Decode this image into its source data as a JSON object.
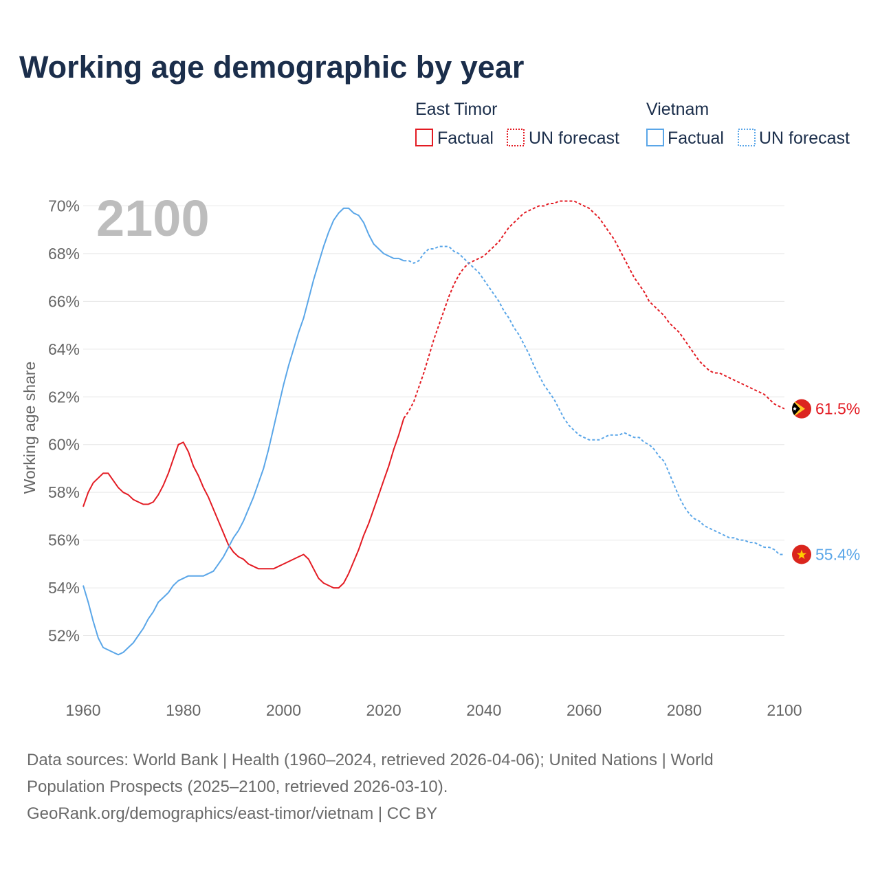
{
  "title": "Working age demographic by year",
  "year_display": "2100",
  "legend": {
    "groups": [
      {
        "country": "East Timor",
        "color": "#e31b23",
        "factual_label": "Factual",
        "forecast_label": "UN forecast"
      },
      {
        "country": "Vietnam",
        "color": "#5aa6e8",
        "factual_label": "Factual",
        "forecast_label": "UN forecast"
      }
    ]
  },
  "chart_data": {
    "type": "line",
    "title": "Working age demographic by year",
    "xlabel": "",
    "ylabel": "Working age share",
    "xlim": [
      1960,
      2100
    ],
    "ylim": [
      50,
      72
    ],
    "x_ticks": [
      "1960",
      "1980",
      "2000",
      "2020",
      "2040",
      "2060",
      "2080",
      "2100"
    ],
    "y_ticks": [
      "52%",
      "54%",
      "56%",
      "58%",
      "60%",
      "62%",
      "64%",
      "66%",
      "68%",
      "70%"
    ],
    "grid": true,
    "series": [
      {
        "name": "East Timor",
        "color": "#e31b23",
        "end_label": "61.5%",
        "factual": [
          [
            1960,
            57.4
          ],
          [
            1961,
            58.0
          ],
          [
            1962,
            58.4
          ],
          [
            1963,
            58.6
          ],
          [
            1964,
            58.8
          ],
          [
            1965,
            58.8
          ],
          [
            1966,
            58.5
          ],
          [
            1967,
            58.2
          ],
          [
            1968,
            58.0
          ],
          [
            1969,
            57.9
          ],
          [
            1970,
            57.7
          ],
          [
            1971,
            57.6
          ],
          [
            1972,
            57.5
          ],
          [
            1973,
            57.5
          ],
          [
            1974,
            57.6
          ],
          [
            1975,
            57.9
          ],
          [
            1976,
            58.3
          ],
          [
            1977,
            58.8
          ],
          [
            1978,
            59.4
          ],
          [
            1979,
            60.0
          ],
          [
            1980,
            60.1
          ],
          [
            1981,
            59.7
          ],
          [
            1982,
            59.1
          ],
          [
            1983,
            58.7
          ],
          [
            1984,
            58.2
          ],
          [
            1985,
            57.8
          ],
          [
            1986,
            57.3
          ],
          [
            1987,
            56.8
          ],
          [
            1988,
            56.3
          ],
          [
            1989,
            55.8
          ],
          [
            1990,
            55.5
          ],
          [
            1991,
            55.3
          ],
          [
            1992,
            55.2
          ],
          [
            1993,
            55.0
          ],
          [
            1994,
            54.9
          ],
          [
            1995,
            54.8
          ],
          [
            1996,
            54.8
          ],
          [
            1997,
            54.8
          ],
          [
            1998,
            54.8
          ],
          [
            1999,
            54.9
          ],
          [
            2000,
            55.0
          ],
          [
            2001,
            55.1
          ],
          [
            2002,
            55.2
          ],
          [
            2003,
            55.3
          ],
          [
            2004,
            55.4
          ],
          [
            2005,
            55.2
          ],
          [
            2006,
            54.8
          ],
          [
            2007,
            54.4
          ],
          [
            2008,
            54.2
          ],
          [
            2009,
            54.1
          ],
          [
            2010,
            54.0
          ],
          [
            2011,
            54.0
          ],
          [
            2012,
            54.2
          ],
          [
            2013,
            54.6
          ],
          [
            2014,
            55.1
          ],
          [
            2015,
            55.6
          ],
          [
            2016,
            56.2
          ],
          [
            2017,
            56.7
          ],
          [
            2018,
            57.3
          ],
          [
            2019,
            57.9
          ],
          [
            2020,
            58.5
          ],
          [
            2021,
            59.1
          ],
          [
            2022,
            59.8
          ],
          [
            2023,
            60.4
          ],
          [
            2024,
            61.1
          ]
        ],
        "forecast": [
          [
            2024,
            61.1
          ],
          [
            2025,
            61.4
          ],
          [
            2026,
            61.8
          ],
          [
            2027,
            62.4
          ],
          [
            2028,
            63.0
          ],
          [
            2029,
            63.7
          ],
          [
            2030,
            64.4
          ],
          [
            2031,
            65.0
          ],
          [
            2032,
            65.6
          ],
          [
            2033,
            66.2
          ],
          [
            2034,
            66.7
          ],
          [
            2035,
            67.1
          ],
          [
            2036,
            67.4
          ],
          [
            2037,
            67.6
          ],
          [
            2038,
            67.7
          ],
          [
            2039,
            67.8
          ],
          [
            2040,
            67.9
          ],
          [
            2041,
            68.1
          ],
          [
            2042,
            68.3
          ],
          [
            2043,
            68.5
          ],
          [
            2044,
            68.8
          ],
          [
            2045,
            69.1
          ],
          [
            2046,
            69.3
          ],
          [
            2047,
            69.5
          ],
          [
            2048,
            69.7
          ],
          [
            2049,
            69.8
          ],
          [
            2050,
            69.9
          ],
          [
            2051,
            70.0
          ],
          [
            2052,
            70.0
          ],
          [
            2053,
            70.1
          ],
          [
            2054,
            70.1
          ],
          [
            2055,
            70.2
          ],
          [
            2056,
            70.2
          ],
          [
            2057,
            70.2
          ],
          [
            2058,
            70.2
          ],
          [
            2059,
            70.1
          ],
          [
            2060,
            70.0
          ],
          [
            2061,
            69.9
          ],
          [
            2062,
            69.7
          ],
          [
            2063,
            69.5
          ],
          [
            2064,
            69.2
          ],
          [
            2065,
            68.9
          ],
          [
            2066,
            68.6
          ],
          [
            2067,
            68.2
          ],
          [
            2068,
            67.8
          ],
          [
            2069,
            67.4
          ],
          [
            2070,
            67.0
          ],
          [
            2071,
            66.7
          ],
          [
            2072,
            66.4
          ],
          [
            2073,
            66.0
          ],
          [
            2074,
            65.8
          ],
          [
            2075,
            65.6
          ],
          [
            2076,
            65.4
          ],
          [
            2077,
            65.1
          ],
          [
            2078,
            64.9
          ],
          [
            2079,
            64.7
          ],
          [
            2080,
            64.4
          ],
          [
            2081,
            64.1
          ],
          [
            2082,
            63.8
          ],
          [
            2083,
            63.5
          ],
          [
            2084,
            63.3
          ],
          [
            2085,
            63.1
          ],
          [
            2086,
            63.0
          ],
          [
            2087,
            63.0
          ],
          [
            2088,
            62.9
          ],
          [
            2089,
            62.8
          ],
          [
            2090,
            62.7
          ],
          [
            2091,
            62.6
          ],
          [
            2092,
            62.5
          ],
          [
            2093,
            62.4
          ],
          [
            2094,
            62.3
          ],
          [
            2095,
            62.2
          ],
          [
            2096,
            62.1
          ],
          [
            2097,
            61.9
          ],
          [
            2098,
            61.7
          ],
          [
            2099,
            61.6
          ],
          [
            2100,
            61.5
          ]
        ]
      },
      {
        "name": "Vietnam",
        "color": "#5aa6e8",
        "end_label": "55.4%",
        "factual": [
          [
            1960,
            54.1
          ],
          [
            1961,
            53.4
          ],
          [
            1962,
            52.6
          ],
          [
            1963,
            51.9
          ],
          [
            1964,
            51.5
          ],
          [
            1965,
            51.4
          ],
          [
            1966,
            51.3
          ],
          [
            1967,
            51.2
          ],
          [
            1968,
            51.3
          ],
          [
            1969,
            51.5
          ],
          [
            1970,
            51.7
          ],
          [
            1971,
            52.0
          ],
          [
            1972,
            52.3
          ],
          [
            1973,
            52.7
          ],
          [
            1974,
            53.0
          ],
          [
            1975,
            53.4
          ],
          [
            1976,
            53.6
          ],
          [
            1977,
            53.8
          ],
          [
            1978,
            54.1
          ],
          [
            1979,
            54.3
          ],
          [
            1980,
            54.4
          ],
          [
            1981,
            54.5
          ],
          [
            1982,
            54.5
          ],
          [
            1983,
            54.5
          ],
          [
            1984,
            54.5
          ],
          [
            1985,
            54.6
          ],
          [
            1986,
            54.7
          ],
          [
            1987,
            55.0
          ],
          [
            1988,
            55.3
          ],
          [
            1989,
            55.7
          ],
          [
            1990,
            56.1
          ],
          [
            1991,
            56.4
          ],
          [
            1992,
            56.8
          ],
          [
            1993,
            57.3
          ],
          [
            1994,
            57.8
          ],
          [
            1995,
            58.4
          ],
          [
            1996,
            59.0
          ],
          [
            1997,
            59.8
          ],
          [
            1998,
            60.7
          ],
          [
            1999,
            61.6
          ],
          [
            2000,
            62.5
          ],
          [
            2001,
            63.3
          ],
          [
            2002,
            64.0
          ],
          [
            2003,
            64.7
          ],
          [
            2004,
            65.3
          ],
          [
            2005,
            66.1
          ],
          [
            2006,
            66.9
          ],
          [
            2007,
            67.6
          ],
          [
            2008,
            68.3
          ],
          [
            2009,
            68.9
          ],
          [
            2010,
            69.4
          ],
          [
            2011,
            69.7
          ],
          [
            2012,
            69.9
          ],
          [
            2013,
            69.9
          ],
          [
            2014,
            69.7
          ],
          [
            2015,
            69.6
          ],
          [
            2016,
            69.3
          ],
          [
            2017,
            68.8
          ],
          [
            2018,
            68.4
          ],
          [
            2019,
            68.2
          ],
          [
            2020,
            68.0
          ],
          [
            2021,
            67.9
          ],
          [
            2022,
            67.8
          ],
          [
            2023,
            67.8
          ],
          [
            2024,
            67.7
          ]
        ],
        "forecast": [
          [
            2024,
            67.7
          ],
          [
            2025,
            67.7
          ],
          [
            2026,
            67.6
          ],
          [
            2027,
            67.7
          ],
          [
            2028,
            68.0
          ],
          [
            2029,
            68.2
          ],
          [
            2030,
            68.2
          ],
          [
            2031,
            68.3
          ],
          [
            2032,
            68.3
          ],
          [
            2033,
            68.3
          ],
          [
            2034,
            68.1
          ],
          [
            2035,
            68.0
          ],
          [
            2036,
            67.8
          ],
          [
            2037,
            67.6
          ],
          [
            2038,
            67.4
          ],
          [
            2039,
            67.2
          ],
          [
            2040,
            66.9
          ],
          [
            2041,
            66.6
          ],
          [
            2042,
            66.3
          ],
          [
            2043,
            66.0
          ],
          [
            2044,
            65.6
          ],
          [
            2045,
            65.3
          ],
          [
            2046,
            64.9
          ],
          [
            2047,
            64.6
          ],
          [
            2048,
            64.2
          ],
          [
            2049,
            63.8
          ],
          [
            2050,
            63.3
          ],
          [
            2051,
            62.9
          ],
          [
            2052,
            62.5
          ],
          [
            2053,
            62.2
          ],
          [
            2054,
            61.9
          ],
          [
            2055,
            61.5
          ],
          [
            2056,
            61.1
          ],
          [
            2057,
            60.8
          ],
          [
            2058,
            60.6
          ],
          [
            2059,
            60.4
          ],
          [
            2060,
            60.3
          ],
          [
            2061,
            60.2
          ],
          [
            2062,
            60.2
          ],
          [
            2063,
            60.2
          ],
          [
            2064,
            60.3
          ],
          [
            2065,
            60.4
          ],
          [
            2066,
            60.4
          ],
          [
            2067,
            60.4
          ],
          [
            2068,
            60.5
          ],
          [
            2069,
            60.4
          ],
          [
            2070,
            60.3
          ],
          [
            2071,
            60.3
          ],
          [
            2072,
            60.1
          ],
          [
            2073,
            60.0
          ],
          [
            2074,
            59.8
          ],
          [
            2075,
            59.5
          ],
          [
            2076,
            59.3
          ],
          [
            2077,
            58.8
          ],
          [
            2078,
            58.3
          ],
          [
            2079,
            57.8
          ],
          [
            2080,
            57.4
          ],
          [
            2081,
            57.1
          ],
          [
            2082,
            56.9
          ],
          [
            2083,
            56.8
          ],
          [
            2084,
            56.6
          ],
          [
            2085,
            56.5
          ],
          [
            2086,
            56.4
          ],
          [
            2087,
            56.3
          ],
          [
            2088,
            56.2
          ],
          [
            2089,
            56.1
          ],
          [
            2090,
            56.1
          ],
          [
            2091,
            56.0
          ],
          [
            2092,
            56.0
          ],
          [
            2093,
            55.9
          ],
          [
            2094,
            55.9
          ],
          [
            2095,
            55.8
          ],
          [
            2096,
            55.7
          ],
          [
            2097,
            55.7
          ],
          [
            2098,
            55.6
          ],
          [
            2099,
            55.4
          ],
          [
            2100,
            55.4
          ]
        ]
      }
    ]
  },
  "source": {
    "line1": "Data sources: World Bank | Health (1960–2024, retrieved 2026-04-06); United Nations | World",
    "line2": "Population Prospects (2025–2100, retrieved 2026-03-10).",
    "line3": "GeoRank.org/demographics/east-timor/vietnam | CC BY"
  },
  "icons": {
    "east_timor_flag": "east-timor-flag-icon",
    "vietnam_flag": "vietnam-flag-icon"
  }
}
